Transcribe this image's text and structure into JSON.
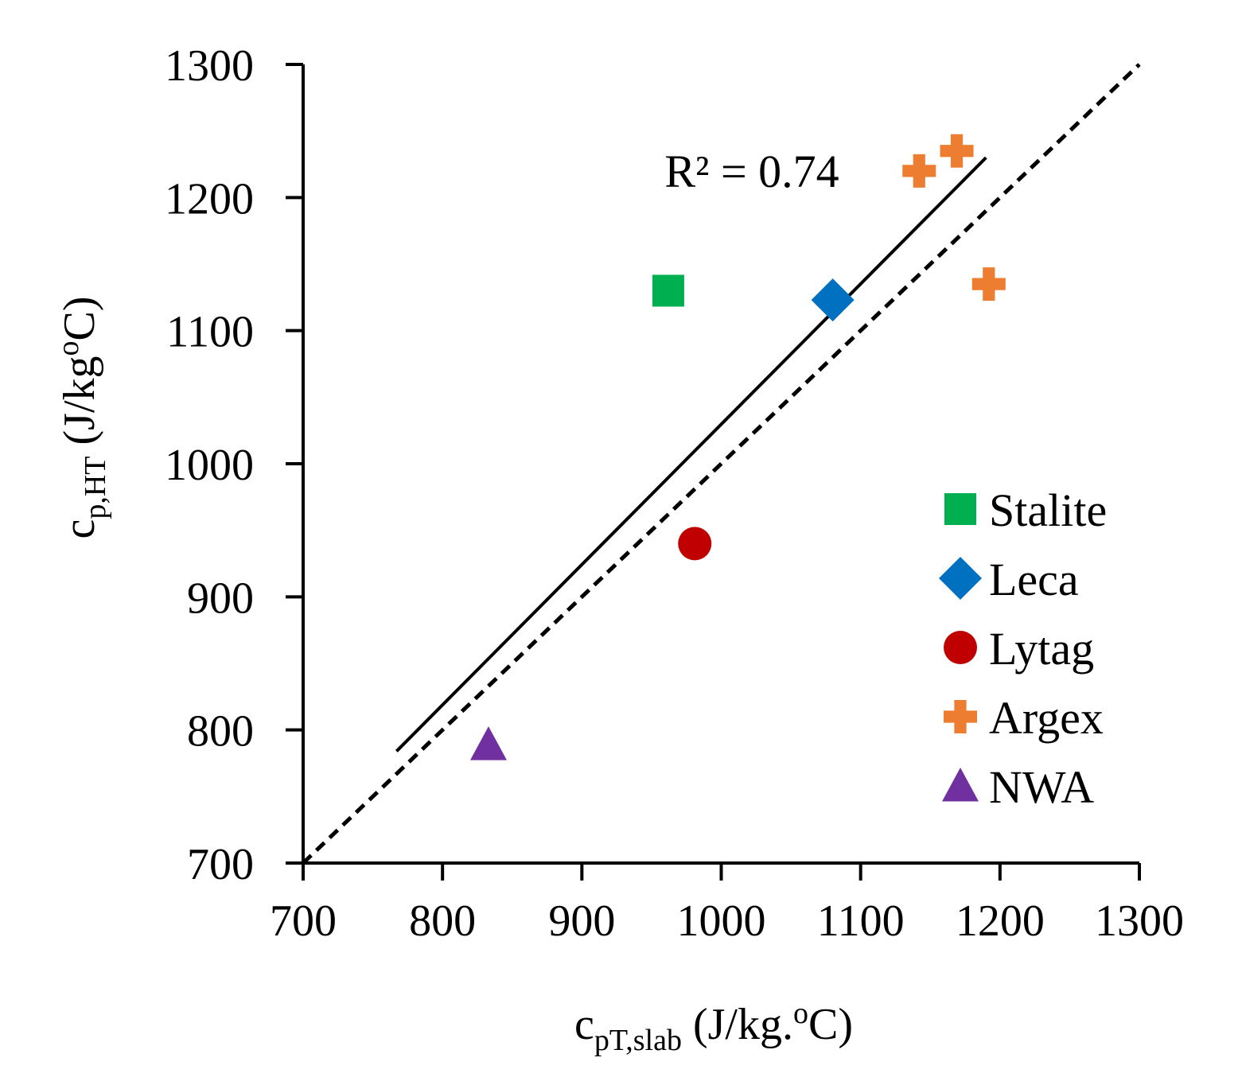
{
  "chart_data": {
    "type": "scatter",
    "x_axis": {
      "label_main": "c",
      "label_sub": "pT,slab",
      "label_rest": " (J/kg.",
      "label_sup": "o",
      "label_end": "C)",
      "range": [
        700,
        1300
      ],
      "ticks": [
        700,
        800,
        900,
        1000,
        1100,
        1200,
        1300
      ]
    },
    "y_axis": {
      "label_main": "c",
      "label_sub": "p,HT",
      "label_rest": " (J/kg",
      "label_sup": "o",
      "label_end": "C)",
      "range": [
        700,
        1300
      ],
      "ticks": [
        700,
        800,
        900,
        1000,
        1100,
        1200,
        1300
      ]
    },
    "grid": false,
    "legend_position": "bottom-right",
    "series": [
      {
        "name": "Stalite",
        "marker": "square",
        "color": "#00B050",
        "points": [
          [
            962,
            1130
          ]
        ]
      },
      {
        "name": "Leca",
        "marker": "diamond",
        "color": "#0070C0",
        "points": [
          [
            1080,
            1123
          ]
        ]
      },
      {
        "name": "Lytag",
        "marker": "circle",
        "color": "#C00000",
        "points": [
          [
            981,
            940
          ]
        ]
      },
      {
        "name": "Argex",
        "marker": "plus",
        "color": "#ED7D31",
        "points": [
          [
            1142,
            1220
          ],
          [
            1169,
            1235
          ],
          [
            1192,
            1135
          ]
        ]
      },
      {
        "name": "NWA",
        "marker": "triangle",
        "color": "#7030A0",
        "points": [
          [
            833,
            789
          ]
        ]
      }
    ],
    "trendline": {
      "style": "solid",
      "color": "#000000",
      "from": [
        767,
        784
      ],
      "to": [
        1190,
        1230
      ]
    },
    "reference_line": {
      "style": "dashed",
      "color": "#000000",
      "from": [
        700,
        700
      ],
      "to": [
        1300,
        1300
      ]
    },
    "annotation": {
      "text": "R² = 0.74",
      "anchor": [
        1022,
        1220
      ]
    }
  }
}
